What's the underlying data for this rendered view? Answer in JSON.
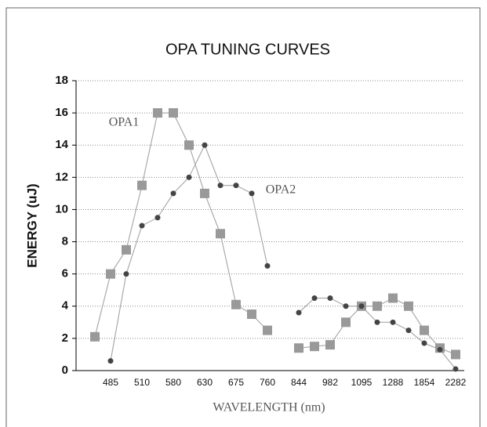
{
  "chart_data": {
    "type": "line",
    "title": "OPA TUNING CURVES",
    "x_label": "WAVELENGTH (nm)",
    "y_label": "ENERGY (uJ)",
    "annotations": [
      "OPA1",
      "OPA2"
    ],
    "categories": [
      null,
      "485",
      null,
      "510",
      null,
      "580",
      null,
      "630",
      null,
      "675",
      null,
      "760",
      null,
      "844",
      null,
      "982",
      null,
      "1095",
      null,
      "1288",
      null,
      "1854",
      null,
      "2282"
    ],
    "series": [
      {
        "name": "OPA1",
        "color": "#999999",
        "marker": "square",
        "values": [
          2.1,
          6,
          7.5,
          11.5,
          16,
          16,
          14,
          11,
          8.5,
          4.1,
          3.5,
          2.5,
          null,
          1.4,
          1.5,
          1.6,
          3,
          4,
          4,
          4.5,
          4,
          2.5,
          1.4,
          1
        ]
      },
      {
        "name": "OPA2",
        "color": "#444444",
        "marker": "circle",
        "values": [
          null,
          0.6,
          6,
          9,
          9.5,
          11,
          12,
          14,
          11.5,
          11.5,
          11,
          6.5,
          null,
          3.6,
          4.5,
          4.5,
          4,
          4,
          3,
          3,
          2.5,
          1.7,
          1.3,
          0.1
        ]
      }
    ],
    "ylim": [
      0,
      18
    ],
    "yticks": [
      0,
      2,
      4,
      6,
      8,
      10,
      12,
      14,
      16,
      18
    ],
    "grid": true
  }
}
